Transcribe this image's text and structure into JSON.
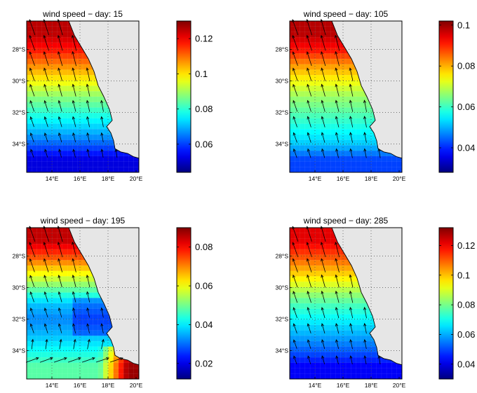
{
  "figure": {
    "panels": [
      {
        "title": "wind speed − day: 15"
      },
      {
        "title": "wind speed − day: 105"
      },
      {
        "title": "wind speed − day: 195"
      },
      {
        "title": "wind speed − day: 285"
      }
    ]
  },
  "chart_data": [
    {
      "type": "heatmap",
      "title": "wind speed − day: 15",
      "lon_ticks": [
        "14°E",
        "16°E",
        "18°E",
        "20°E"
      ],
      "lat_ticks": [
        "28°S",
        "30°S",
        "32°S",
        "34°S"
      ],
      "lon_range": [
        12.2,
        20.2
      ],
      "lat_range": [
        -35.8,
        -26.2
      ],
      "colorbar": {
        "ticks": [
          0.06,
          0.08,
          0.1,
          0.12
        ],
        "range": [
          0.044,
          0.13
        ]
      },
      "speed_by_latitude": {
        "lat": [
          -27,
          -28,
          -29,
          -30,
          -31,
          -32,
          -33,
          -34,
          -35
        ],
        "value": [
          0.125,
          0.118,
          0.108,
          0.098,
          0.088,
          0.08,
          0.072,
          0.063,
          0.052
        ]
      },
      "wind_direction": "northward"
    },
    {
      "type": "heatmap",
      "title": "wind speed − day: 105",
      "lon_ticks": [
        "14°E",
        "16°E",
        "18°E",
        "20°E"
      ],
      "lat_ticks": [
        "28°S",
        "30°S",
        "32°S",
        "34°S"
      ],
      "lon_range": [
        12.2,
        20.2
      ],
      "lat_range": [
        -35.8,
        -26.2
      ],
      "colorbar": {
        "ticks": [
          0.04,
          0.06,
          0.08,
          0.1
        ],
        "range": [
          0.028,
          0.102
        ]
      },
      "speed_by_latitude": {
        "lat": [
          -27,
          -28,
          -29,
          -30,
          -31,
          -32,
          -33,
          -34,
          -35
        ],
        "value": [
          0.098,
          0.092,
          0.082,
          0.074,
          0.067,
          0.062,
          0.057,
          0.052,
          0.042
        ]
      },
      "wind_direction": "northward"
    },
    {
      "type": "heatmap",
      "title": "wind speed − day: 195",
      "lon_ticks": [
        "14°E",
        "16°E",
        "18°E",
        "20°E"
      ],
      "lat_ticks": [
        "28°S",
        "30°S",
        "32°S",
        "34°S"
      ],
      "lon_range": [
        12.2,
        20.2
      ],
      "lat_range": [
        -35.8,
        -26.2
      ],
      "colorbar": {
        "ticks": [
          0.02,
          0.04,
          0.06,
          0.08
        ],
        "range": [
          0.012,
          0.09
        ]
      },
      "speed_by_latitude": {
        "lat": [
          -27,
          -28,
          -29,
          -30,
          -31,
          -32,
          -33,
          -34,
          -35
        ],
        "value": [
          0.085,
          0.075,
          0.062,
          0.05,
          0.037,
          0.032,
          0.036,
          0.042,
          0.048
        ]
      },
      "wind_direction": "northward in the north, eastward in the south"
    },
    {
      "type": "heatmap",
      "title": "wind speed − day: 285",
      "lon_ticks": [
        "14°E",
        "16°E",
        "18°E",
        "20°E"
      ],
      "lat_ticks": [
        "28°S",
        "30°S",
        "32°S",
        "34°S"
      ],
      "lon_range": [
        12.2,
        20.2
      ],
      "lat_range": [
        -35.8,
        -26.2
      ],
      "colorbar": {
        "ticks": [
          0.04,
          0.06,
          0.08,
          0.1,
          0.12
        ],
        "range": [
          0.03,
          0.132
        ]
      },
      "speed_by_latitude": {
        "lat": [
          -27,
          -28,
          -29,
          -30,
          -31,
          -32,
          -33,
          -34,
          -35
        ],
        "value": [
          0.122,
          0.112,
          0.1,
          0.088,
          0.076,
          0.068,
          0.06,
          0.052,
          0.042
        ]
      },
      "wind_direction": "northward"
    }
  ]
}
